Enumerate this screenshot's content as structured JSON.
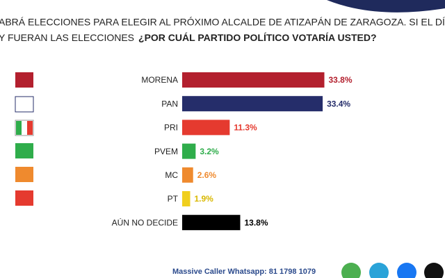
{
  "chart_data": {
    "type": "bar",
    "orientation": "horizontal",
    "title_line1": "ABRÁ ELECCIONES PARA ELEGIR AL PRÓXIMO ALCALDE DE ATIZAPÁN DE ZARAGOZA. SI EL DÍA",
    "title_line2": "Y FUERAN LAS ELECCIONES",
    "title_question": "¿POR CUÁL PARTIDO POLÍTICO VOTARÍA USTED?",
    "categories": [
      "MORENA",
      "PAN",
      "PRI",
      "PVEM",
      "MC",
      "PT",
      "AÚN NO DECIDE"
    ],
    "values": [
      33.8,
      33.4,
      11.3,
      3.2,
      2.6,
      1.9,
      13.8
    ],
    "value_labels": [
      "33.8%",
      "33.4%",
      "11.3%",
      "3.2%",
      "2.6%",
      "1.9%",
      "13.8%"
    ],
    "colors": [
      "#b3202e",
      "#252d6a",
      "#e53a2f",
      "#2fad4b",
      "#ef8a2e",
      "#f0cf1e",
      "#000000"
    ],
    "label_colors": [
      "#b3202e",
      "#252d6a",
      "#e53a2f",
      "#2fad4b",
      "#ef8a2e",
      "#d9b800",
      "#000000"
    ],
    "footer": "Massive Caller Whatsapp: 81 1798 1079"
  }
}
